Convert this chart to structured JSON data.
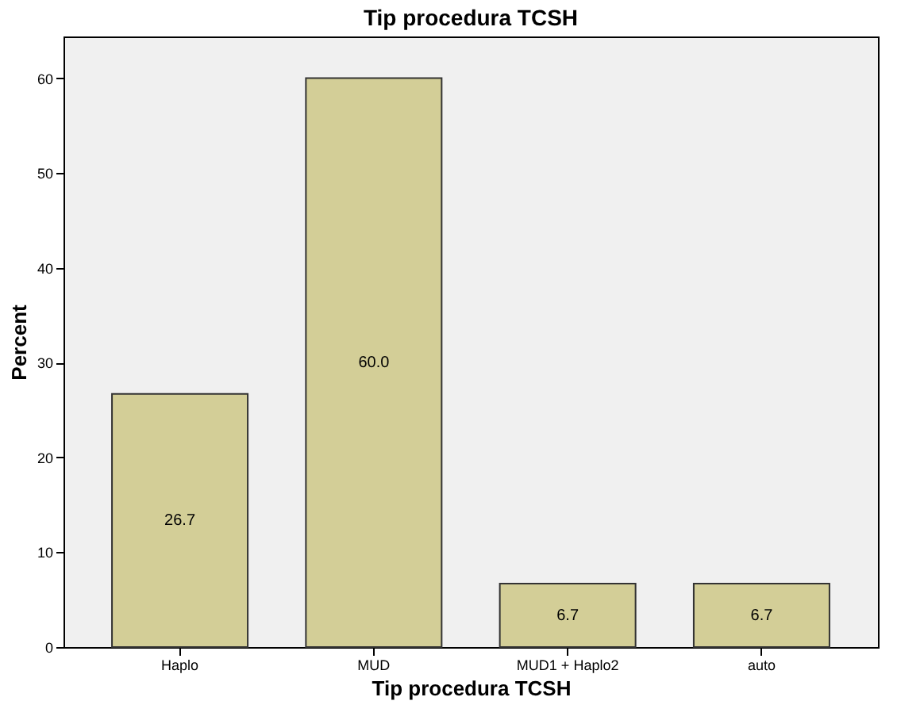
{
  "chart_data": {
    "type": "bar",
    "title": "Tip procedura TCSH",
    "xlabel": "Tip procedura TCSH",
    "ylabel": "Percent",
    "categories": [
      "Haplo",
      "MUD",
      "MUD1 + Haplo2",
      "auto"
    ],
    "values": [
      26.7,
      60.0,
      6.7,
      6.7
    ],
    "value_labels": [
      "26.7",
      "60.0",
      "6.7",
      "6.7"
    ],
    "color": "#d3ce97",
    "ylim": [
      0,
      64.4
    ],
    "yticks": [
      0,
      10,
      20,
      30,
      40,
      50,
      60
    ],
    "grid": false
  }
}
